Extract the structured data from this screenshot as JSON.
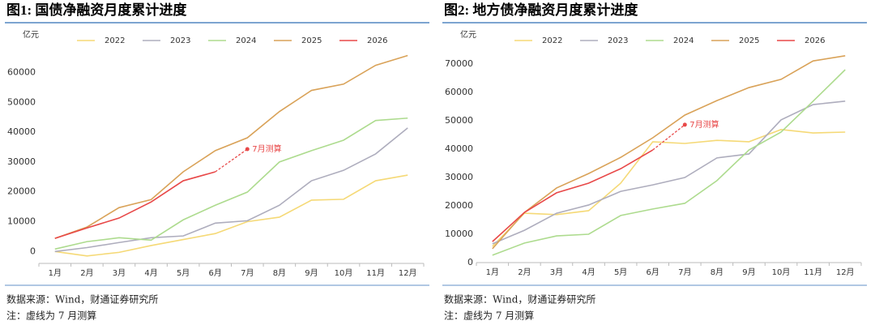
{
  "chart_data": [
    {
      "type": "line",
      "title": "图1: 国债净融资月度累计进度",
      "y_unit": "亿元",
      "categories": [
        "1月",
        "2月",
        "3月",
        "4月",
        "5月",
        "6月",
        "7月",
        "8月",
        "9月",
        "10月",
        "11月",
        "12月"
      ],
      "ylim": [
        -4000,
        68000
      ],
      "yticks": [
        0,
        10000,
        20000,
        30000,
        40000,
        50000,
        60000
      ],
      "series": [
        {
          "name": "2022",
          "color": "#f5d976",
          "values": [
            0,
            -1500,
            -300,
            2000,
            4000,
            6000,
            10000,
            11500,
            17200,
            17500,
            23700,
            25600
          ]
        },
        {
          "name": "2023",
          "color": "#aeadbd",
          "values": [
            0,
            1300,
            3000,
            4600,
            5200,
            9500,
            10300,
            15500,
            23700,
            27200,
            32700,
            41400
          ]
        },
        {
          "name": "2024",
          "color": "#addb8e",
          "values": [
            800,
            3300,
            4600,
            3800,
            10600,
            15500,
            19900,
            30000,
            33800,
            37300,
            43900,
            44700
          ]
        },
        {
          "name": "2025",
          "color": "#d9a258",
          "values": [
            4400,
            8200,
            14700,
            17400,
            26700,
            33800,
            38100,
            46900,
            54000,
            56100,
            62400,
            65700
          ]
        },
        {
          "name": "2026",
          "color": "#e84848",
          "values": [
            4400,
            7900,
            11200,
            16600,
            23700,
            26700,
            null,
            null,
            null,
            null,
            null,
            null
          ]
        }
      ],
      "projection": {
        "category": "7月",
        "value": 34300,
        "label": "7月测算",
        "color": "#e84848"
      },
      "source": "数据来源：Wind，财通证券研究所",
      "note": "注：虚线为 7 月测算"
    },
    {
      "type": "line",
      "title": "图2: 地方债净融资月度累计进度",
      "y_unit": "亿元",
      "categories": [
        "1月",
        "2月",
        "3月",
        "4月",
        "5月",
        "6月",
        "7月",
        "8月",
        "9月",
        "10月",
        "11月",
        "12月"
      ],
      "ylim": [
        0,
        74000
      ],
      "yticks": [
        0,
        10000,
        20000,
        30000,
        40000,
        50000,
        60000,
        70000
      ],
      "series": [
        {
          "name": "2022",
          "color": "#f5d976",
          "values": [
            5700,
            17400,
            16900,
            18300,
            28000,
            42600,
            42000,
            43100,
            42600,
            46900,
            45700,
            46000
          ]
        },
        {
          "name": "2023",
          "color": "#aeadbd",
          "values": [
            6600,
            11400,
            17400,
            20300,
            25100,
            27400,
            30000,
            36900,
            38300,
            50300,
            55700,
            56900
          ]
        },
        {
          "name": "2024",
          "color": "#addb8e",
          "values": [
            2600,
            6900,
            9400,
            10000,
            16600,
            18900,
            20900,
            28900,
            39700,
            46000,
            56900,
            68000
          ]
        },
        {
          "name": "2025",
          "color": "#d9a258",
          "values": [
            4900,
            17700,
            26300,
            31400,
            37100,
            44000,
            52000,
            57100,
            61700,
            64600,
            71100,
            72900
          ]
        },
        {
          "name": "2026",
          "color": "#e84848",
          "values": [
            7400,
            17700,
            24600,
            28000,
            33100,
            39700,
            null,
            null,
            null,
            null,
            null,
            null
          ]
        }
      ],
      "projection": {
        "category": "7月",
        "value": 48600,
        "label": "7月测算",
        "color": "#e84848"
      },
      "source": "数据来源：Wind，财通证券研究所",
      "note": "注：虚线为 7 月测算"
    }
  ]
}
